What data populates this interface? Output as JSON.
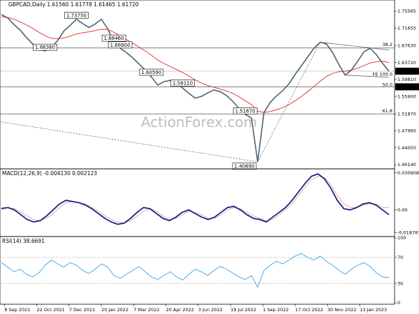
{
  "chart_data": {
    "type": "line",
    "watermark": "ActionForex.com",
    "x_tick_labels": [
      "8 Sep 2021",
      "22 Oct 2021",
      "7 Dec 2021",
      "20 Jan 2022",
      "7 Mar 2022",
      "20 Apr 2022",
      "3 Jun 2022",
      "19 Jul 2022",
      "1 Sep 2022",
      "17 Oct 2022",
      "30 Nov 2022",
      "13 Jan 2023"
    ],
    "price_panel": {
      "title": "GBPCAD,Daily  1.61560 1.61778 1.61465 1.61720",
      "series_name": "GBPCAD,Daily",
      "last_value": 1.6172,
      "last_label": "1.61720",
      "ylim": [
        1.395,
        1.775
      ],
      "y_ticks": [
        1.75565,
        1.71655,
        1.6763,
        1.6372,
        1.5981,
        1.559,
        1.5187,
        1.4796,
        1.4405,
        1.4014
      ],
      "y_tick_labels": [
        "1.75565",
        "1.71655",
        "1.67630",
        "1.63720",
        "1.59810",
        "1.55900",
        "1.51870",
        "1.47960",
        "1.44050",
        "1.40140"
      ],
      "close": [
        1.748,
        1.74,
        1.725,
        1.712,
        1.695,
        1.68,
        1.667,
        1.664,
        1.672,
        1.688,
        1.71,
        1.723,
        1.737,
        1.727,
        1.718,
        1.726,
        1.737,
        1.715,
        1.685,
        1.67,
        1.66,
        1.648,
        1.634,
        1.62,
        1.604,
        1.585,
        1.593,
        1.596,
        1.59,
        1.578,
        1.566,
        1.555,
        1.559,
        1.567,
        1.574,
        1.57,
        1.561,
        1.548,
        1.531,
        1.518,
        1.509,
        1.408,
        1.522,
        1.545,
        1.56,
        1.572,
        1.588,
        1.61,
        1.63,
        1.65,
        1.67,
        1.684,
        1.68,
        1.66,
        1.632,
        1.608,
        1.62,
        1.64,
        1.662,
        1.67,
        1.655,
        1.635,
        1.617
      ],
      "moving_average": [
        1.743,
        1.741,
        1.737,
        1.731,
        1.724,
        1.716,
        1.707,
        1.699,
        1.693,
        1.692,
        1.694,
        1.698,
        1.703,
        1.706,
        1.708,
        1.711,
        1.714,
        1.713,
        1.707,
        1.699,
        1.69,
        1.682,
        1.673,
        1.664,
        1.654,
        1.643,
        1.635,
        1.628,
        1.621,
        1.614,
        1.606,
        1.597,
        1.59,
        1.584,
        1.58,
        1.576,
        1.572,
        1.566,
        1.558,
        1.549,
        1.54,
        1.525,
        1.522,
        1.524,
        1.528,
        1.533,
        1.54,
        1.549,
        1.559,
        1.57,
        1.582,
        1.594,
        1.605,
        1.612,
        1.616,
        1.617,
        1.62,
        1.624,
        1.63,
        1.636,
        1.639,
        1.64,
        1.637
      ],
      "horizontal_lines": [
        {
          "value": 1.6707,
          "color": "#333333"
        },
        {
          "value": 1.5811,
          "color": "#333333"
        },
        {
          "value": 1.5187,
          "color": "#333333"
        },
        {
          "value": 1.6172,
          "color": "#999999"
        }
      ],
      "level_boxes": [
        {
          "label": "1.73750",
          "value": 1.7375
        },
        {
          "label": "1.66360",
          "value": 1.6636
        },
        {
          "label": "1.40690",
          "value": 1.4069
        },
        {
          "label": "1.58110",
          "value": 1.5811
        },
        {
          "label": "1.51670",
          "value": 1.5167
        },
        {
          "label": "1.68460",
          "value": 1.6846
        },
        {
          "label": "1.66900",
          "value": 1.669
        },
        {
          "label": "1.60590",
          "value": 1.6059
        }
      ],
      "axis_boxes": [
        {
          "label": "1.61720",
          "value": 1.6172
        },
        {
          "label": "1.58110",
          "value": 1.5811
        }
      ],
      "fib_notes": [
        {
          "label": "38.2",
          "value": 1.6735
        },
        {
          "label": "FE 100.0",
          "value": 1.6055
        },
        {
          "label": "50.0",
          "value": 1.5806
        },
        {
          "label": "61.8",
          "value": 1.5208
        }
      ]
    },
    "macd_panel": {
      "title": "MACD(12,26,9) -0.004130 0.002123",
      "ylim": [
        -0.021,
        0.033
      ],
      "y_ticks": [
        0.030908,
        0.0,
        -0.018787
      ],
      "y_tick_labels": [
        "0.030908",
        "0.00",
        "-0.018787"
      ],
      "macd": [
        0.001,
        0.002,
        0.0,
        -0.004,
        -0.008,
        -0.01,
        -0.009,
        -0.005,
        0.0,
        0.005,
        0.008,
        0.007,
        0.006,
        0.004,
        0.001,
        -0.003,
        -0.007,
        -0.01,
        -0.012,
        -0.011,
        -0.007,
        -0.002,
        0.002,
        0.001,
        -0.003,
        -0.007,
        -0.009,
        -0.006,
        -0.002,
        0.0,
        -0.003,
        -0.006,
        -0.008,
        -0.006,
        -0.002,
        0.002,
        0.003,
        0.0,
        -0.004,
        -0.007,
        -0.008,
        -0.01,
        -0.006,
        -0.002,
        0.002,
        0.008,
        0.015,
        0.022,
        0.028,
        0.03,
        0.026,
        0.018,
        0.008,
        0.001,
        0.0,
        0.002,
        0.005,
        0.006,
        0.004,
        0.0,
        -0.004
      ],
      "signal": [
        0.002,
        0.002,
        0.001,
        -0.002,
        -0.005,
        -0.008,
        -0.009,
        -0.007,
        -0.003,
        0.002,
        0.006,
        0.007,
        0.006,
        0.005,
        0.002,
        -0.001,
        -0.005,
        -0.008,
        -0.01,
        -0.011,
        -0.009,
        -0.005,
        -0.001,
        0.001,
        -0.001,
        -0.005,
        -0.008,
        -0.007,
        -0.004,
        -0.001,
        -0.002,
        -0.004,
        -0.007,
        -0.007,
        -0.004,
        0.0,
        0.002,
        0.001,
        -0.002,
        -0.005,
        -0.007,
        -0.009,
        -0.008,
        -0.004,
        0.0,
        0.005,
        0.012,
        0.019,
        0.025,
        0.028,
        0.027,
        0.021,
        0.012,
        0.005,
        0.002,
        0.002,
        0.004,
        0.005,
        0.005,
        0.002,
        0.002
      ]
    },
    "rsi_panel": {
      "title": "RSI(14) 38.6691",
      "ylim": [
        0,
        100
      ],
      "y_ticks": [
        100,
        70,
        30,
        0
      ],
      "y_tick_labels": [
        "100",
        "70",
        "30",
        "0"
      ],
      "levels": [
        70,
        30
      ],
      "rsi": [
        62,
        55,
        48,
        52,
        44,
        40,
        46,
        58,
        66,
        60,
        55,
        62,
        58,
        50,
        45,
        52,
        60,
        55,
        42,
        38,
        44,
        50,
        56,
        48,
        40,
        36,
        42,
        48,
        40,
        35,
        44,
        52,
        48,
        42,
        50,
        56,
        52,
        46,
        40,
        36,
        42,
        24,
        50,
        58,
        64,
        60,
        66,
        72,
        76,
        70,
        66,
        72,
        64,
        58,
        50,
        44,
        52,
        58,
        62,
        56,
        46,
        40,
        38.7
      ]
    },
    "colors": {
      "close": "#4a6472",
      "moving_average": "#e03a3a",
      "macd": "#1f1f8a",
      "signal": "#e8a0a0",
      "rsi": "#3aa3e8"
    }
  }
}
